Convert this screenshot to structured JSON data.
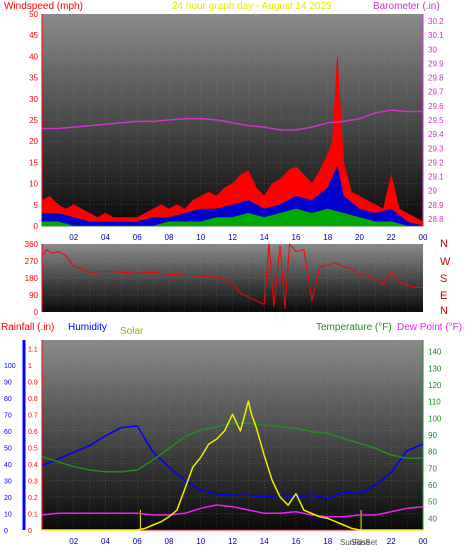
{
  "header": {
    "windspeed_label": "Windspeed (mph)",
    "title": "24 hour graph day - August 14 2025",
    "barometer_label": "Barometer (.in)"
  },
  "direction_labels": [
    "N",
    "W",
    "S",
    "E",
    "N"
  ],
  "bottom_header": {
    "rainfall_label": "Rainfall (.in)",
    "humidity_label": "Humidity",
    "solar_label": "Solar",
    "temperature_label": "Temperature (°F)",
    "dewpoint_label": "Dew Point (°F)"
  },
  "x_tick_labels": [
    "02",
    "04",
    "06",
    "08",
    "10",
    "12",
    "14",
    "16",
    "18",
    "20",
    "22",
    "00"
  ],
  "bottom_annotations": [
    "SunRise",
    "SunSet"
  ],
  "colors": {
    "wind_gust": "#ff0000",
    "wind_avg": "#0000cc",
    "wind_low": "#00aa00",
    "barometer": "#cc33cc",
    "direction": "#ff0000",
    "humidity": "#0000ff",
    "temperature": "#228b22",
    "dewpoint": "#ee22ee",
    "solar": "#eeee00",
    "rain": "#ff0000"
  },
  "chart_data": [
    {
      "type": "area",
      "x_unit": "hour of day",
      "title": "24 hour graph day - August 14 2025",
      "ylabel": "Windspeed (mph)",
      "y2label": "Barometer (.in)",
      "ylim": [
        0,
        50
      ],
      "y2lim": [
        28.75,
        30.25
      ],
      "yticks": [
        0,
        5,
        10,
        15,
        20,
        25,
        30,
        35,
        40,
        45,
        50
      ],
      "y2ticks": [
        "28.8",
        "28.9",
        "29",
        "29.1",
        "29.2",
        "29.3",
        "29.4",
        "29.5",
        "29.6",
        "29.7",
        "29.8",
        "29.9",
        "30",
        "30.1",
        "30.2"
      ],
      "series": [
        {
          "name": "Windspeed gust",
          "x": [
            0,
            0.5,
            1,
            1.5,
            2,
            2.5,
            3,
            3.5,
            4,
            4.5,
            5,
            5.5,
            6,
            6.5,
            7,
            7.5,
            8,
            8.5,
            9,
            9.5,
            10,
            10.5,
            11,
            11.5,
            12,
            12.5,
            13,
            13.5,
            14,
            14.5,
            15,
            15.5,
            16,
            16.5,
            17,
            17.5,
            18,
            18.3,
            18.6,
            19,
            19.5,
            20,
            20.5,
            21,
            21.5,
            22,
            22.5,
            23,
            23.5,
            24
          ],
          "values": [
            6,
            7,
            5,
            4,
            5,
            4,
            3,
            2,
            3,
            2,
            2,
            2,
            2,
            3,
            4,
            5,
            4,
            5,
            4,
            6,
            7,
            8,
            7,
            9,
            10,
            12,
            13,
            9,
            7,
            10,
            11,
            13,
            14,
            12,
            10,
            13,
            17,
            20,
            40,
            15,
            8,
            7,
            6,
            5,
            4,
            12,
            4,
            3,
            2,
            1
          ]
        },
        {
          "name": "Windspeed avg",
          "x": [
            0,
            1,
            2,
            3,
            4,
            5,
            6,
            7,
            8,
            9,
            10,
            11,
            12,
            13,
            14,
            15,
            16,
            17,
            18,
            18.6,
            19,
            20,
            21,
            22,
            23,
            24
          ],
          "values": [
            3,
            3,
            2,
            1,
            1,
            1,
            1,
            2,
            2,
            3,
            4,
            4,
            5,
            6,
            4,
            5,
            7,
            6,
            9,
            14,
            7,
            4,
            3,
            4,
            1,
            0
          ]
        },
        {
          "name": "Windspeed low",
          "x": [
            0,
            1,
            2,
            3,
            4,
            5,
            6,
            7,
            8,
            9,
            10,
            11,
            12,
            13,
            14,
            15,
            16,
            17,
            18,
            19,
            20,
            21,
            22,
            23,
            24
          ],
          "values": [
            1,
            1,
            0,
            0,
            0,
            0,
            0,
            0,
            1,
            1,
            1,
            2,
            2,
            3,
            2,
            3,
            4,
            3,
            4,
            3,
            2,
            1,
            1,
            0,
            0
          ]
        },
        {
          "name": "Barometer",
          "axis": "y2",
          "x": [
            0,
            1,
            2,
            3,
            4,
            5,
            6,
            7,
            8,
            9,
            10,
            11,
            12,
            13,
            14,
            15,
            16,
            17,
            18,
            19,
            20,
            21,
            22,
            23,
            24
          ],
          "values": [
            29.44,
            29.44,
            29.45,
            29.46,
            29.47,
            29.48,
            29.49,
            29.49,
            29.5,
            29.51,
            29.51,
            29.5,
            29.48,
            29.46,
            29.45,
            29.43,
            29.43,
            29.45,
            29.48,
            29.49,
            29.51,
            29.55,
            29.57,
            29.56,
            29.56
          ]
        }
      ]
    },
    {
      "type": "line",
      "x_unit": "hour of day",
      "ylabel": "Wind direction (degrees)",
      "ylim": [
        0,
        360
      ],
      "yticks": [
        0,
        90,
        180,
        270,
        360
      ],
      "series": [
        {
          "name": "Wind direction",
          "x": [
            0,
            0.3,
            0.6,
            1,
            1.5,
            2,
            2.5,
            3,
            4,
            5,
            6,
            7,
            8,
            9,
            10,
            11,
            12,
            12.5,
            13,
            13.5,
            14,
            14.3,
            14.6,
            15,
            15.3,
            15.6,
            16,
            16.5,
            17,
            17.5,
            18,
            18.5,
            19,
            19.5,
            20,
            20.5,
            21,
            21.5,
            22,
            22.5,
            23,
            23.5,
            24
          ],
          "values": [
            300,
            330,
            310,
            320,
            300,
            240,
            230,
            210,
            215,
            210,
            205,
            210,
            200,
            195,
            190,
            190,
            150,
            100,
            80,
            60,
            40,
            360,
            30,
            350,
            20,
            360,
            320,
            330,
            60,
            240,
            250,
            260,
            240,
            230,
            200,
            190,
            180,
            140,
            220,
            160,
            140,
            130,
            130
          ]
        }
      ]
    },
    {
      "type": "line",
      "x_unit": "hour of day",
      "ylabel": "Rainfall (.in)",
      "ylim": [
        0,
        1.15
      ],
      "yticks": [
        0,
        0.1,
        0.2,
        0.3,
        0.4,
        0.5,
        0.6,
        0.7,
        0.8,
        0.9,
        1,
        1.1
      ],
      "humidity_ticks": [
        0,
        10,
        20,
        30,
        40,
        50,
        60,
        70,
        80,
        90,
        100
      ],
      "y2label": "Temperature (°F)",
      "y2lim": [
        33,
        147
      ],
      "y2ticks": [
        40,
        50,
        60,
        70,
        80,
        90,
        100,
        110,
        120,
        130,
        140
      ],
      "series": [
        {
          "name": "Rainfall",
          "x": [
            0,
            24
          ],
          "values": [
            0,
            0
          ]
        },
        {
          "name": "Humidity",
          "axis": "humidity",
          "x": [
            0,
            1,
            2,
            3,
            4,
            5,
            6,
            7,
            8,
            9,
            10,
            11,
            12,
            13,
            14,
            15,
            16,
            17,
            18,
            19,
            20,
            21,
            22,
            23,
            24
          ],
          "values": [
            39,
            43,
            47,
            51,
            57,
            62,
            63,
            47,
            38,
            30,
            24,
            22,
            21,
            21,
            20,
            21,
            20,
            21,
            19,
            23,
            22,
            27,
            35,
            48,
            52
          ]
        },
        {
          "name": "Temperature",
          "axis": "y2",
          "x": [
            0,
            1,
            2,
            3,
            4,
            5,
            6,
            7,
            8,
            9,
            10,
            11,
            12,
            13,
            14,
            15,
            16,
            17,
            18,
            19,
            20,
            21,
            22,
            23,
            24
          ],
          "values": [
            77,
            74,
            71,
            69,
            68,
            68,
            69,
            75,
            82,
            89,
            93,
            95,
            97,
            97,
            96,
            95,
            94,
            92,
            91,
            88,
            85,
            82,
            78,
            76,
            76
          ]
        },
        {
          "name": "Dew Point",
          "axis": "y2",
          "x": [
            0,
            1,
            2,
            3,
            4,
            5,
            6,
            7,
            8,
            9,
            10,
            11,
            12,
            13,
            14,
            15,
            16,
            17,
            18,
            19,
            20,
            21,
            22,
            23,
            24
          ],
          "values": [
            42,
            43,
            43,
            43,
            43,
            43,
            43,
            42,
            42,
            43,
            46,
            48,
            47,
            45,
            43,
            43,
            44,
            42,
            41,
            41,
            42,
            42,
            44,
            46,
            47
          ]
        },
        {
          "name": "Solar",
          "x": [
            0,
            6,
            6.5,
            7,
            7.5,
            8,
            8.5,
            9,
            9.5,
            10,
            10.5,
            11,
            11.5,
            12,
            12.5,
            13,
            13.2,
            13.5,
            14,
            14.5,
            15,
            15.5,
            16,
            16.5,
            17,
            17.5,
            18,
            18.5,
            19,
            19.5,
            20,
            24
          ],
          "values": [
            0,
            0,
            0.01,
            0.03,
            0.05,
            0.08,
            0.12,
            0.25,
            0.38,
            0.44,
            0.52,
            0.55,
            0.6,
            0.7,
            0.6,
            0.78,
            0.7,
            0.62,
            0.45,
            0.3,
            0.2,
            0.15,
            0.22,
            0.12,
            0.1,
            0.08,
            0.07,
            0.05,
            0.03,
            0.01,
            0,
            0
          ]
        }
      ]
    }
  ]
}
